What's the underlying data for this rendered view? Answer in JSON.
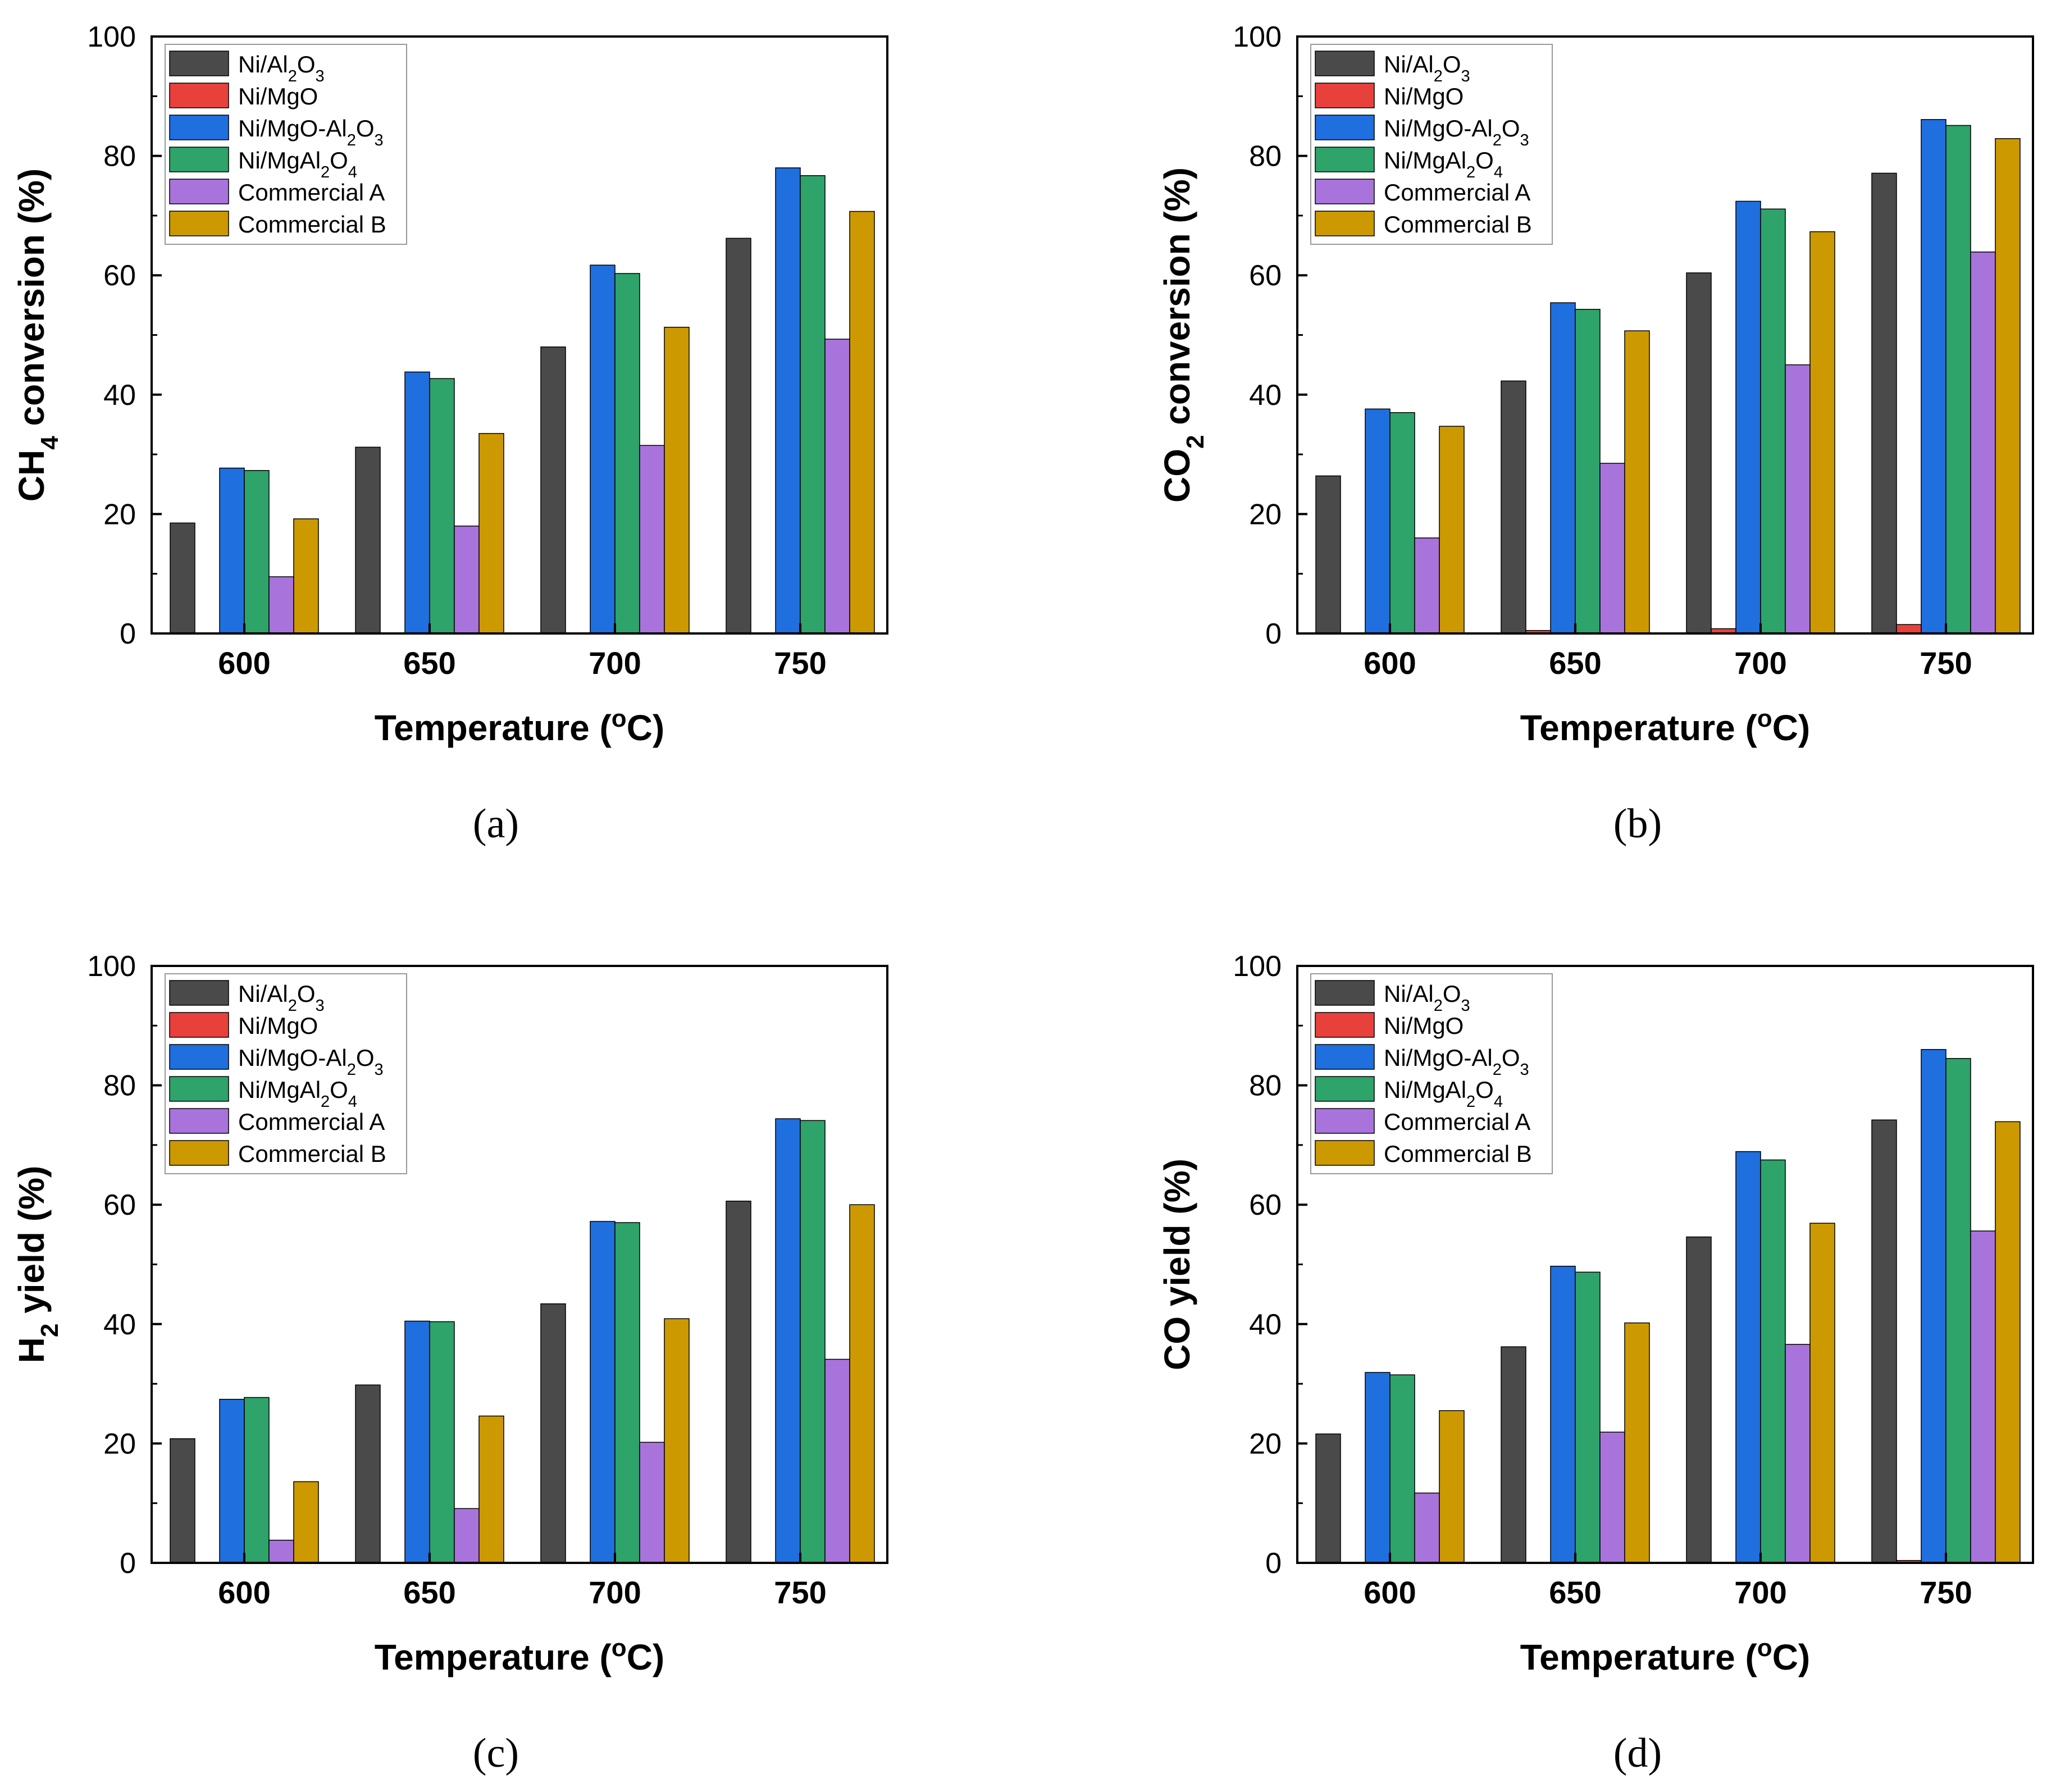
{
  "figure": {
    "subfigure_labels": [
      "(a)",
      "(b)",
      "(c)",
      "(d)"
    ]
  },
  "colors": {
    "Ni/Al2O3": "#4a4a4a",
    "Ni/MgO": "#e8413c",
    "Ni/MgO-Al2O3": "#1f6fde",
    "Ni/MgAl2O4": "#2ea36a",
    "Commercial A": "#a874dc",
    "Commercial B": "#cc9900"
  },
  "chart_data": [
    {
      "id": "a",
      "type": "bar",
      "ylabel_parts": [
        [
          "CH",
          ""
        ],
        [
          "4",
          "sub"
        ],
        [
          " conversion (%)",
          ""
        ]
      ],
      "xlabel_parts": [
        [
          "Temperature (",
          ""
        ],
        [
          "o",
          "sup"
        ],
        [
          "C)",
          ""
        ]
      ],
      "ylabel_text": "CH4 conversion (%)",
      "xlabel_text": "Temperature (oC)",
      "categories": [
        "600",
        "650",
        "700",
        "750"
      ],
      "ylim": [
        0,
        100
      ],
      "yticks": [
        "0",
        "20",
        "40",
        "60",
        "80",
        "100"
      ],
      "legend": "top-left",
      "series": [
        {
          "name": "Ni/Al2O3",
          "values": [
            18.5,
            31.2,
            48.0,
            66.2
          ]
        },
        {
          "name": "Ni/MgO",
          "values": [
            0,
            0,
            0,
            0
          ]
        },
        {
          "name": "Ni/MgO-Al2O3",
          "values": [
            27.7,
            43.8,
            61.7,
            78.0
          ]
        },
        {
          "name": "Ni/MgAl2O4",
          "values": [
            27.3,
            42.7,
            60.3,
            76.7
          ]
        },
        {
          "name": "Commercial A",
          "values": [
            9.5,
            18.0,
            31.5,
            49.3
          ]
        },
        {
          "name": "Commercial B",
          "values": [
            19.2,
            33.5,
            51.3,
            70.7
          ]
        }
      ]
    },
    {
      "id": "b",
      "type": "bar",
      "ylabel_parts": [
        [
          "CO",
          ""
        ],
        [
          "2",
          "sub"
        ],
        [
          " conversion (%)",
          ""
        ]
      ],
      "xlabel_parts": [
        [
          "Temperature (",
          ""
        ],
        [
          "o",
          "sup"
        ],
        [
          "C)",
          ""
        ]
      ],
      "ylabel_text": "CO2 conversion (%)",
      "xlabel_text": "Temperature (oC)",
      "categories": [
        "600",
        "650",
        "700",
        "750"
      ],
      "ylim": [
        0,
        100
      ],
      "yticks": [
        "0",
        "20",
        "40",
        "60",
        "80",
        "100"
      ],
      "legend": "top-left",
      "series": [
        {
          "name": "Ni/Al2O3",
          "values": [
            26.4,
            42.3,
            60.4,
            77.1
          ]
        },
        {
          "name": "Ni/MgO",
          "values": [
            0.1,
            0.5,
            0.8,
            1.5
          ]
        },
        {
          "name": "Ni/MgO-Al2O3",
          "values": [
            37.6,
            55.4,
            72.4,
            86.1
          ]
        },
        {
          "name": "Ni/MgAl2O4",
          "values": [
            37.0,
            54.3,
            71.1,
            85.1
          ]
        },
        {
          "name": "Commercial A",
          "values": [
            16.0,
            28.5,
            45.0,
            63.9
          ]
        },
        {
          "name": "Commercial B",
          "values": [
            34.7,
            50.7,
            67.3,
            82.9
          ]
        }
      ]
    },
    {
      "id": "c",
      "type": "bar",
      "ylabel_parts": [
        [
          "H",
          ""
        ],
        [
          "2",
          "sub"
        ],
        [
          " yield (%)",
          ""
        ]
      ],
      "xlabel_parts": [
        [
          "Temperature (",
          ""
        ],
        [
          "o",
          "sup"
        ],
        [
          "C)",
          ""
        ]
      ],
      "ylabel_text": "H2 yield (%)",
      "xlabel_text": "Temperature (oC)",
      "categories": [
        "600",
        "650",
        "700",
        "750"
      ],
      "ylim": [
        0,
        100
      ],
      "yticks": [
        "0",
        "20",
        "40",
        "60",
        "80",
        "100"
      ],
      "legend": "top-left",
      "series": [
        {
          "name": "Ni/Al2O3",
          "values": [
            20.8,
            29.8,
            43.4,
            60.6
          ]
        },
        {
          "name": "Ni/MgO",
          "values": [
            0,
            0,
            0,
            0
          ]
        },
        {
          "name": "Ni/MgO-Al2O3",
          "values": [
            27.4,
            40.5,
            57.2,
            74.4
          ]
        },
        {
          "name": "Ni/MgAl2O4",
          "values": [
            27.7,
            40.4,
            57.0,
            74.1
          ]
        },
        {
          "name": "Commercial A",
          "values": [
            3.8,
            9.1,
            20.2,
            34.1
          ]
        },
        {
          "name": "Commercial B",
          "values": [
            13.6,
            24.6,
            40.9,
            60.0
          ]
        }
      ]
    },
    {
      "id": "d",
      "type": "bar",
      "ylabel_parts": [
        [
          "CO yield (%)",
          ""
        ]
      ],
      "xlabel_parts": [
        [
          "Temperature (",
          ""
        ],
        [
          "o",
          "sup"
        ],
        [
          "C)",
          ""
        ]
      ],
      "ylabel_text": "CO yield (%)",
      "xlabel_text": "Temperature (oC)",
      "categories": [
        "600",
        "650",
        "700",
        "750"
      ],
      "ylim": [
        0,
        100
      ],
      "yticks": [
        "0",
        "20",
        "40",
        "60",
        "80",
        "100"
      ],
      "legend": "top-left",
      "series": [
        {
          "name": "Ni/Al2O3",
          "values": [
            21.6,
            36.2,
            54.6,
            74.2
          ]
        },
        {
          "name": "Ni/MgO",
          "values": [
            0,
            0,
            0,
            0.4
          ]
        },
        {
          "name": "Ni/MgO-Al2O3",
          "values": [
            31.9,
            49.7,
            68.9,
            86.0
          ]
        },
        {
          "name": "Ni/MgAl2O4",
          "values": [
            31.5,
            48.7,
            67.5,
            84.5
          ]
        },
        {
          "name": "Commercial A",
          "values": [
            11.7,
            21.9,
            36.6,
            55.6
          ]
        },
        {
          "name": "Commercial B",
          "values": [
            25.5,
            40.2,
            56.9,
            73.9
          ]
        }
      ]
    }
  ],
  "legend_entries": [
    {
      "key": "Ni/Al2O3",
      "parts": [
        [
          "Ni/Al",
          ""
        ],
        [
          "2",
          "sub"
        ],
        [
          "O",
          ""
        ],
        [
          "3",
          "sub"
        ]
      ]
    },
    {
      "key": "Ni/MgO",
      "parts": [
        [
          "Ni/MgO",
          ""
        ]
      ]
    },
    {
      "key": "Ni/MgO-Al2O3",
      "parts": [
        [
          "Ni/MgO-Al",
          ""
        ],
        [
          "2",
          "sub"
        ],
        [
          "O",
          ""
        ],
        [
          "3",
          "sub"
        ]
      ]
    },
    {
      "key": "Ni/MgAl2O4",
      "parts": [
        [
          "Ni/MgAl",
          ""
        ],
        [
          "2",
          "sub"
        ],
        [
          "O",
          ""
        ],
        [
          "4",
          "sub"
        ]
      ]
    },
    {
      "key": "Commercial A",
      "parts": [
        [
          "Commercial A",
          ""
        ]
      ]
    },
    {
      "key": "Commercial B",
      "parts": [
        [
          "Commercial B",
          ""
        ]
      ]
    }
  ]
}
